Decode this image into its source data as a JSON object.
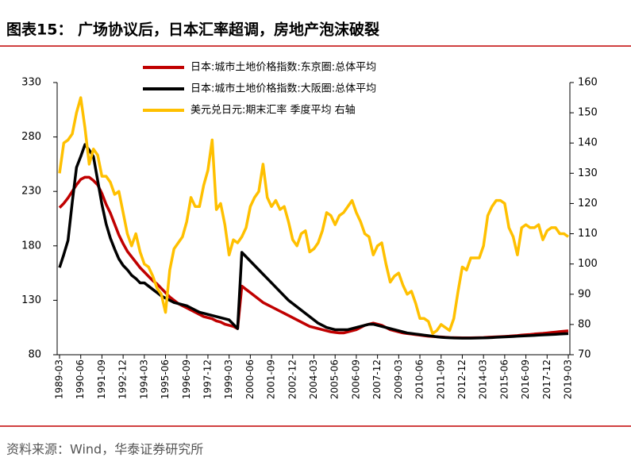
{
  "chart_data": {
    "type": "line",
    "title": "图表15：  广场协议后，日本汇率超调，房地产泡沫破裂",
    "source": "资料来源：Wind，华泰证券研究所",
    "legend": "top",
    "categories": [
      "1989-03",
      null,
      null,
      null,
      null,
      "1990-06",
      null,
      null,
      null,
      null,
      "1991-09",
      null,
      null,
      null,
      null,
      "1992-12",
      null,
      null,
      null,
      null,
      "1994-03",
      null,
      null,
      null,
      null,
      "1995-06",
      null,
      null,
      null,
      null,
      "1996-09",
      null,
      null,
      null,
      null,
      "1997-12",
      null,
      null,
      null,
      null,
      "1999-03",
      null,
      null,
      null,
      null,
      "2000-06",
      null,
      null,
      null,
      null,
      "2001-09",
      null,
      null,
      null,
      null,
      "2002-12",
      null,
      null,
      null,
      null,
      "2004-03",
      null,
      null,
      null,
      null,
      "2005-06",
      null,
      null,
      null,
      null,
      "2006-09",
      null,
      null,
      null,
      null,
      "2007-12",
      null,
      null,
      null,
      null,
      "2009-03",
      null,
      null,
      null,
      null,
      "2010-06",
      null,
      null,
      null,
      null,
      "2011-09",
      null,
      null,
      null,
      null,
      "2012-12",
      null,
      null,
      null,
      null,
      "2014-03",
      null,
      null,
      null,
      null,
      "2015-06",
      null,
      null,
      null,
      null,
      "2016-09",
      null,
      null,
      null,
      null,
      "2017-12",
      null,
      null,
      null,
      null,
      "2019-03"
    ],
    "ylim": [
      80,
      330
    ],
    "yticks": [
      80,
      130,
      180,
      230,
      280,
      330
    ],
    "y2lim": [
      70,
      160
    ],
    "y2ticks": [
      70,
      80,
      90,
      100,
      110,
      120,
      130,
      140,
      150,
      160
    ],
    "series": [
      {
        "name": "日本:城市土地价格指数:东京圈:总体平均",
        "color": "#c00000",
        "values": [
          215,
          219,
          224,
          230,
          236,
          241,
          243,
          243,
          240,
          236,
          228,
          218,
          210,
          200,
          190,
          182,
          175,
          170,
          165,
          160,
          156,
          152,
          148,
          145,
          141,
          137,
          133,
          130,
          127,
          125,
          123,
          121,
          119,
          117,
          115,
          114,
          113,
          111,
          110,
          108,
          107,
          106,
          104,
          143,
          140,
          137,
          134,
          131,
          128,
          126,
          124,
          122,
          120,
          118,
          116,
          114,
          112,
          110,
          108,
          106,
          105,
          104,
          103,
          102,
          101,
          100.5,
          100,
          100,
          101,
          102,
          103,
          105,
          107,
          108,
          109,
          108,
          107,
          105,
          103,
          102,
          101,
          100,
          99.5,
          99,
          98.5,
          98,
          97.5,
          97,
          96.8,
          96.5,
          96.3,
          96,
          95.8,
          95.7,
          95.6,
          95.5,
          95.5,
          95.5,
          95.6,
          95.7,
          95.8,
          96,
          96.2,
          96.4,
          96.6,
          96.8,
          97,
          97.3,
          97.6,
          98,
          98.3,
          98.6,
          99,
          99.3,
          99.6,
          100,
          100.4,
          100.8,
          101.2,
          101.6,
          102
        ]
      },
      {
        "name": "日本:城市土地价格指数:大阪圈:总体平均",
        "color": "#000000",
        "values": [
          160,
          172,
          185,
          220,
          252,
          262,
          273,
          268,
          262,
          240,
          218,
          200,
          187,
          177,
          168,
          162,
          158,
          153,
          150,
          146,
          146,
          143,
          140,
          137,
          134,
          132,
          130,
          128,
          127,
          126,
          125,
          123,
          121,
          119,
          118,
          117,
          116,
          115,
          114,
          113,
          112,
          108,
          104,
          174,
          170,
          166,
          162,
          158,
          154,
          150,
          146,
          142,
          138,
          134,
          130,
          127,
          124,
          121,
          118,
          115,
          112,
          109,
          107,
          105,
          104,
          103,
          103,
          103,
          103,
          104,
          105,
          106,
          107,
          108,
          108,
          107,
          106,
          105,
          104,
          103,
          102,
          101,
          100,
          99.5,
          99,
          98.5,
          98,
          97.5,
          97,
          96.5,
          96,
          95.8,
          95.6,
          95.4,
          95.3,
          95.2,
          95.2,
          95.2,
          95.3,
          95.4,
          95.5,
          95.6,
          95.8,
          96,
          96.2,
          96.4,
          96.6,
          96.8,
          97,
          97.2,
          97.4,
          97.6,
          97.8,
          98,
          98.2,
          98.4,
          98.6,
          98.8,
          99,
          99.2,
          99.4
        ]
      },
      {
        "name": "美元兑日元:期末汇率 季度平均 右轴",
        "color": "#ffc000",
        "axis": "y2",
        "values": [
          130,
          140,
          141,
          143,
          150,
          155,
          145,
          133,
          138,
          136,
          129,
          129,
          127,
          123,
          124,
          117,
          110,
          106,
          110,
          104,
          100,
          99,
          96,
          92,
          90,
          84,
          98,
          105,
          107,
          109,
          114,
          122,
          119,
          119,
          126,
          131,
          141,
          118,
          120,
          113,
          103,
          108,
          107,
          109,
          112,
          119,
          122,
          124,
          133,
          122,
          119,
          121,
          118,
          119,
          114,
          108,
          106,
          110,
          111,
          104,
          105,
          107,
          111,
          117,
          116,
          113,
          116,
          117,
          119,
          121,
          117,
          114,
          110,
          109,
          103,
          106,
          107,
          100,
          94,
          96,
          97,
          93,
          90,
          91,
          87,
          82,
          82,
          81,
          77,
          78,
          80,
          79,
          78,
          82,
          91,
          99,
          98,
          102,
          102,
          102,
          106,
          116,
          119,
          121,
          121,
          120,
          112,
          109,
          103,
          112,
          113,
          112,
          112,
          113,
          108,
          111,
          112,
          112,
          110,
          110,
          109
        ]
      }
    ]
  }
}
